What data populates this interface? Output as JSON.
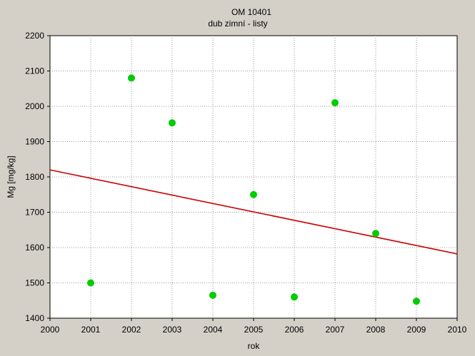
{
  "chart_data": {
    "type": "scatter",
    "title": "OM 10401",
    "subtitle": "dub zimní - listy",
    "xlabel": "rok",
    "ylabel": "Mg [mg/kg]",
    "xlim": [
      2000,
      2010
    ],
    "ylim": [
      1400,
      2200
    ],
    "xticks": [
      2000,
      2001,
      2002,
      2003,
      2004,
      2005,
      2006,
      2007,
      2008,
      2009,
      2010
    ],
    "yticks": [
      1400,
      1500,
      1600,
      1700,
      1800,
      1900,
      2000,
      2100,
      2200
    ],
    "grid": true,
    "series": [
      {
        "name": "Mg",
        "color": "#00cc00",
        "points": [
          {
            "x": 2001,
            "y": 1500
          },
          {
            "x": 2002,
            "y": 2080
          },
          {
            "x": 2003,
            "y": 1953
          },
          {
            "x": 2004,
            "y": 1465
          },
          {
            "x": 2005,
            "y": 1750
          },
          {
            "x": 2006,
            "y": 1460
          },
          {
            "x": 2007,
            "y": 2010
          },
          {
            "x": 2008,
            "y": 1640
          },
          {
            "x": 2009,
            "y": 1448
          }
        ]
      }
    ],
    "trendline": {
      "type": "linear",
      "color": "#cc0000",
      "points": [
        {
          "x": 2000,
          "y": 1820
        },
        {
          "x": 2010,
          "y": 1582
        }
      ]
    }
  }
}
